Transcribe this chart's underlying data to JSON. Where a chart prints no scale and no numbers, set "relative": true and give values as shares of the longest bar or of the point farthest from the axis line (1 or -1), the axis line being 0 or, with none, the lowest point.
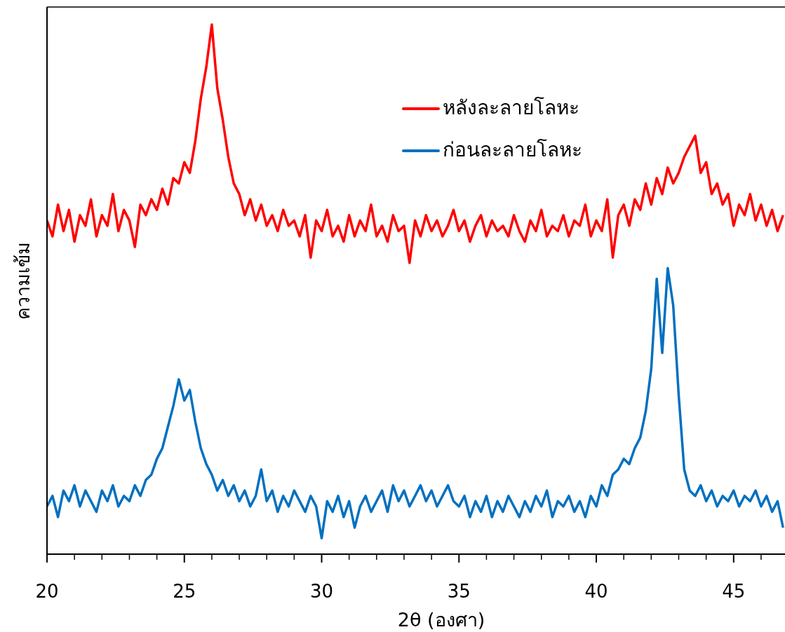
{
  "chart_data": {
    "type": "line",
    "relative": true,
    "xlabel": "2θ (องศา)",
    "ylabel": "ความเข้ม",
    "xlim": [
      20,
      46.87
    ],
    "xticks": [
      20,
      {
        "value": 21,
        "label": null
      },
      {
        "value": 22,
        "label": null
      },
      {
        "value": 23,
        "label": null
      },
      {
        "value": 24,
        "label": null
      },
      25,
      {
        "value": 26,
        "label": null
      },
      {
        "value": 27,
        "label": null
      },
      {
        "value": 28,
        "label": null
      },
      {
        "value": 29,
        "label": null
      },
      30,
      {
        "value": 31,
        "label": null
      },
      {
        "value": 32,
        "label": null
      },
      {
        "value": 33,
        "label": null
      },
      {
        "value": 34,
        "label": null
      },
      35,
      {
        "value": 36,
        "label": null
      },
      {
        "value": 37,
        "label": null
      },
      {
        "value": 38,
        "label": null
      },
      {
        "value": 39,
        "label": null
      },
      40,
      {
        "value": 41,
        "label": null
      },
      {
        "value": 42,
        "label": null
      },
      {
        "value": 43,
        "label": null
      },
      {
        "value": 44,
        "label": null
      },
      45,
      {
        "value": 46,
        "label": null
      }
    ],
    "legend": "top right",
    "marker": "none",
    "line_style": "solid",
    "grid": false,
    "x": [
      20,
      20.2,
      20.4,
      20.6,
      20.8,
      21,
      21.2,
      21.4,
      21.6,
      21.8,
      22,
      22.2,
      22.4,
      22.6,
      22.8,
      23,
      23.2,
      23.4,
      23.6,
      23.8,
      24,
      24.2,
      24.4,
      24.6,
      24.8,
      25,
      25.2,
      25.4,
      25.6,
      25.8,
      26,
      26.2,
      26.4,
      26.6,
      26.8,
      27,
      27.2,
      27.4,
      27.6,
      27.8,
      28,
      28.2,
      28.4,
      28.6,
      28.8,
      29,
      29.2,
      29.4,
      29.6,
      29.8,
      30,
      30.2,
      30.4,
      30.6,
      30.8,
      31,
      31.2,
      31.4,
      31.6,
      31.8,
      32,
      32.2,
      32.4,
      32.6,
      32.8,
      33,
      33.2,
      33.4,
      33.6,
      33.8,
      34,
      34.2,
      34.4,
      34.6,
      34.8,
      35,
      35.2,
      35.4,
      35.6,
      35.8,
      36,
      36.2,
      36.4,
      36.6,
      36.8,
      37,
      37.2,
      37.4,
      37.6,
      37.8,
      38,
      38.2,
      38.4,
      38.6,
      38.8,
      39,
      39.2,
      39.4,
      39.6,
      39.8,
      40,
      40.2,
      40.4,
      40.6,
      40.8,
      41,
      41.2,
      41.4,
      41.6,
      41.8,
      42,
      42.2,
      42.4,
      42.6,
      42.8,
      43,
      43.2,
      43.4,
      43.6,
      43.8,
      44,
      44.2,
      44.4,
      44.6,
      44.8,
      45,
      45.2,
      45.4,
      45.6,
      45.8,
      46,
      46.2,
      46.4,
      46.6,
      46.8
    ],
    "series": [
      {
        "name": "หลังละลายโลหะ",
        "color": "#ff0000",
        "values": [
          0.63,
          0.6,
          0.66,
          0.61,
          0.65,
          0.59,
          0.64,
          0.62,
          0.67,
          0.6,
          0.64,
          0.62,
          0.68,
          0.61,
          0.65,
          0.63,
          0.58,
          0.66,
          0.64,
          0.67,
          0.65,
          0.69,
          0.66,
          0.71,
          0.7,
          0.74,
          0.72,
          0.78,
          0.86,
          0.92,
          1.0,
          0.88,
          0.82,
          0.75,
          0.7,
          0.68,
          0.64,
          0.67,
          0.63,
          0.66,
          0.62,
          0.64,
          0.61,
          0.65,
          0.62,
          0.63,
          0.6,
          0.64,
          0.56,
          0.63,
          0.61,
          0.65,
          0.6,
          0.62,
          0.59,
          0.64,
          0.6,
          0.63,
          0.61,
          0.66,
          0.6,
          0.62,
          0.59,
          0.64,
          0.61,
          0.62,
          0.55,
          0.63,
          0.6,
          0.64,
          0.61,
          0.63,
          0.6,
          0.62,
          0.65,
          0.61,
          0.63,
          0.59,
          0.62,
          0.64,
          0.6,
          0.63,
          0.61,
          0.62,
          0.6,
          0.64,
          0.61,
          0.59,
          0.63,
          0.61,
          0.65,
          0.6,
          0.62,
          0.61,
          0.64,
          0.6,
          0.63,
          0.62,
          0.66,
          0.6,
          0.63,
          0.61,
          0.67,
          0.56,
          0.64,
          0.66,
          0.62,
          0.67,
          0.65,
          0.7,
          0.66,
          0.71,
          0.68,
          0.73,
          0.7,
          0.72,
          0.75,
          0.77,
          0.79,
          0.72,
          0.74,
          0.68,
          0.7,
          0.66,
          0.68,
          0.62,
          0.66,
          0.64,
          0.68,
          0.63,
          0.66,
          0.62,
          0.65,
          0.61,
          0.64
        ]
      },
      {
        "name": "ก่อนละลายโลหะ",
        "color": "#0070c0",
        "values": [
          0.09,
          0.11,
          0.07,
          0.12,
          0.1,
          0.13,
          0.09,
          0.12,
          0.1,
          0.08,
          0.12,
          0.1,
          0.13,
          0.09,
          0.11,
          0.1,
          0.13,
          0.11,
          0.14,
          0.15,
          0.18,
          0.2,
          0.24,
          0.28,
          0.33,
          0.29,
          0.31,
          0.25,
          0.2,
          0.17,
          0.15,
          0.12,
          0.14,
          0.11,
          0.13,
          0.1,
          0.12,
          0.09,
          0.11,
          0.16,
          0.1,
          0.12,
          0.08,
          0.11,
          0.09,
          0.12,
          0.1,
          0.08,
          0.11,
          0.09,
          0.03,
          0.1,
          0.08,
          0.11,
          0.07,
          0.1,
          0.05,
          0.09,
          0.11,
          0.08,
          0.1,
          0.12,
          0.08,
          0.13,
          0.1,
          0.12,
          0.09,
          0.11,
          0.13,
          0.1,
          0.12,
          0.09,
          0.11,
          0.13,
          0.1,
          0.09,
          0.11,
          0.07,
          0.1,
          0.08,
          0.11,
          0.07,
          0.1,
          0.08,
          0.11,
          0.09,
          0.07,
          0.1,
          0.08,
          0.11,
          0.09,
          0.12,
          0.07,
          0.1,
          0.09,
          0.11,
          0.08,
          0.1,
          0.07,
          0.11,
          0.09,
          0.13,
          0.11,
          0.15,
          0.16,
          0.18,
          0.17,
          0.2,
          0.22,
          0.27,
          0.35,
          0.52,
          0.38,
          0.54,
          0.47,
          0.3,
          0.16,
          0.12,
          0.11,
          0.13,
          0.1,
          0.12,
          0.09,
          0.11,
          0.1,
          0.12,
          0.09,
          0.11,
          0.1,
          0.12,
          0.09,
          0.11,
          0.08,
          0.1,
          0.05
        ]
      }
    ]
  }
}
